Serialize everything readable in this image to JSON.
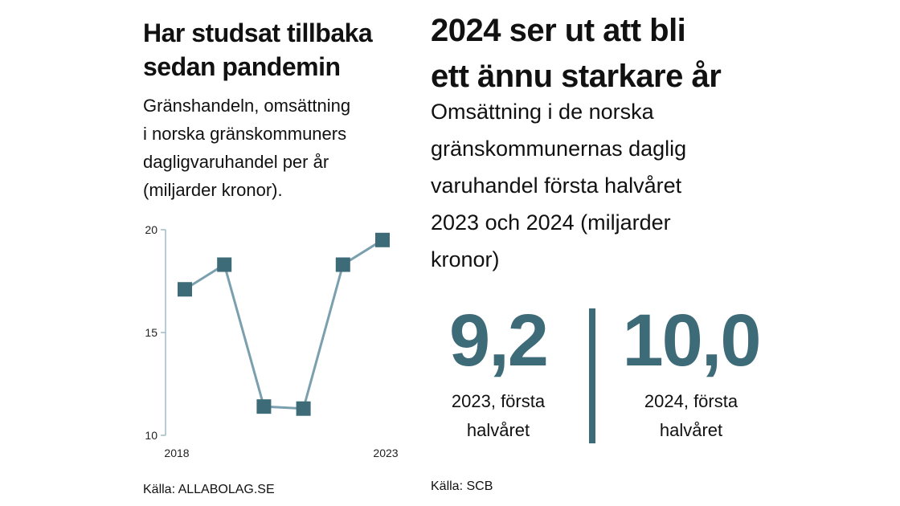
{
  "left": {
    "title": "Har studsat tillbaka\nsedan pandemin",
    "subtitle": "Gränshandeln, omsättning\ni norska gränskommuners\ndagligvaruhandel per år\n (miljarder kronor).",
    "source": "Källa: ALLABOLAG.SE"
  },
  "right": {
    "title": "2024 ser ut att bli\nett ännu starkare år",
    "subtitle": "Omsättning i de norska\ngränskommunernas daglig\nvaruhandel första halvåret\n2023 och 2024 (miljarder\nkronor)",
    "source": "Källa: SCB"
  },
  "chart_data": [
    {
      "type": "line",
      "x": [
        2018,
        2019,
        2020,
        2021,
        2022,
        2023
      ],
      "series": [
        {
          "values": [
            17.1,
            18.3,
            11.4,
            11.3,
            18.3,
            19.5
          ]
        }
      ],
      "x_tick_labels": [
        "2018",
        "2023"
      ],
      "y_ticks": [
        10,
        15,
        20
      ],
      "ylim": [
        10,
        20
      ],
      "marker": "square",
      "grid": false,
      "colors": {
        "line": "#7a9fae",
        "marker": "#3e6b78",
        "axis": "#9dbcc8"
      }
    },
    {
      "type": "table",
      "items": [
        {
          "value": "9,2",
          "label": "2023, första\nhalvåret"
        },
        {
          "value": "10,0",
          "label": "2024, första\nhalvåret"
        }
      ],
      "colors": {
        "value": "#3e6b78",
        "divider": "#3e6b78"
      }
    }
  ]
}
